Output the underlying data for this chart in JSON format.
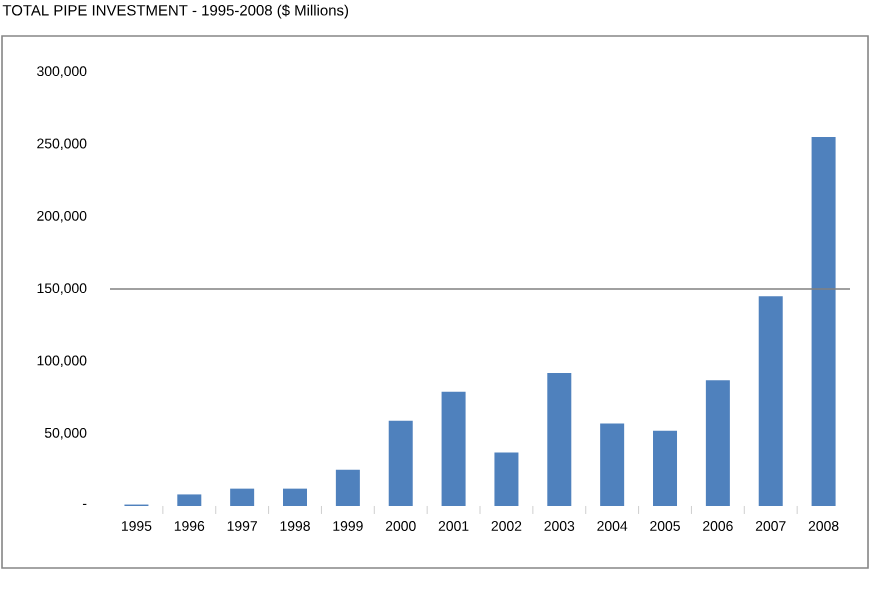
{
  "chart_data": {
    "type": "bar",
    "title": "TOTAL PIPE INVESTMENT - 1995-2008 ($ Millions)",
    "categories": [
      "1995",
      "1996",
      "1997",
      "1998",
      "1999",
      "2000",
      "2001",
      "2002",
      "2003",
      "2004",
      "2005",
      "2006",
      "2007",
      "2008"
    ],
    "values": [
      1000,
      8000,
      12000,
      12000,
      25000,
      59000,
      79000,
      37000,
      92000,
      57000,
      52000,
      87000,
      145000,
      255000
    ],
    "color": "#4f81bd",
    "ylim": [
      0,
      300000
    ],
    "yticks": [
      {
        "value": 0,
        "label": "-"
      },
      {
        "value": 50000,
        "label": "50,000"
      },
      {
        "value": 100000,
        "label": "100,000"
      },
      {
        "value": 150000,
        "label": "150,000"
      },
      {
        "value": 200000,
        "label": "200,000"
      },
      {
        "value": 250000,
        "label": "250,000"
      },
      {
        "value": 300000,
        "label": "300,000"
      }
    ],
    "ref_lines": [
      {
        "axis": "y",
        "value": 150000,
        "color": "#808080"
      }
    ],
    "grid": false
  }
}
